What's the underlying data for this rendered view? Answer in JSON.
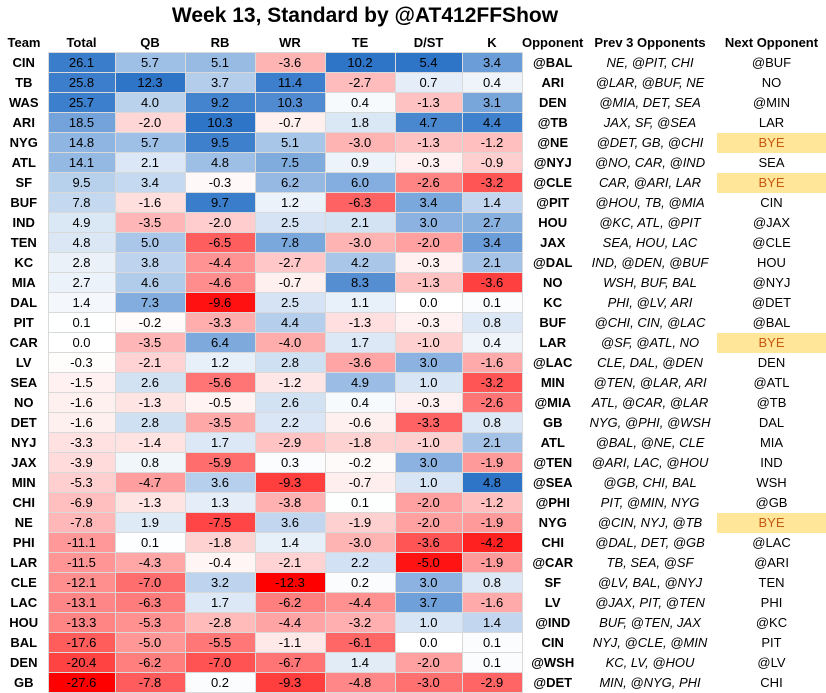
{
  "title": "Week 13, Standard by @AT412FFShow",
  "table": {
    "columns": [
      "Team",
      "Total",
      "QB",
      "RB",
      "WR",
      "TE",
      "D/ST",
      "K",
      "Opponent",
      "Prev 3 Opponents",
      "Next Opponent"
    ],
    "rows": [
      [
        "CIN",
        "26.1",
        "5.7",
        "5.1",
        "-3.6",
        "10.2",
        "5.4",
        "3.4",
        "@BAL",
        "NE, @PIT, CHI",
        "@BUF"
      ],
      [
        "TB",
        "25.8",
        "12.3",
        "3.7",
        "11.4",
        "-2.7",
        "0.7",
        "0.4",
        "ARI",
        "@LAR, @BUF, NE",
        "NO"
      ],
      [
        "WAS",
        "25.7",
        "4.0",
        "9.2",
        "10.3",
        "0.4",
        "-1.3",
        "3.1",
        "DEN",
        "@MIA, DET, SEA",
        "@MIN"
      ],
      [
        "ARI",
        "18.5",
        "-2.0",
        "10.3",
        "-0.7",
        "1.8",
        "4.7",
        "4.4",
        "@TB",
        "JAX, SF, @SEA",
        "LAR"
      ],
      [
        "NYG",
        "14.8",
        "5.7",
        "9.5",
        "5.1",
        "-3.0",
        "-1.3",
        "-1.2",
        "@NE",
        "@DET, GB, @CHI",
        "BYE"
      ],
      [
        "ATL",
        "14.1",
        "2.1",
        "4.8",
        "7.5",
        "0.9",
        "-0.3",
        "-0.9",
        "@NYJ",
        "@NO, CAR, @IND",
        "SEA"
      ],
      [
        "SF",
        "9.5",
        "3.4",
        "-0.3",
        "6.2",
        "6.0",
        "-2.6",
        "-3.2",
        "@CLE",
        "CAR, @ARI, LAR",
        "BYE"
      ],
      [
        "BUF",
        "7.8",
        "-1.6",
        "9.7",
        "1.2",
        "-6.3",
        "3.4",
        "1.4",
        "@PIT",
        "@HOU, TB, @MIA",
        "CIN"
      ],
      [
        "IND",
        "4.9",
        "-3.5",
        "-2.0",
        "2.5",
        "2.1",
        "3.0",
        "2.7",
        "HOU",
        "@KC, ATL, @PIT",
        "@JAX"
      ],
      [
        "TEN",
        "4.8",
        "5.0",
        "-6.5",
        "7.8",
        "-3.0",
        "-2.0",
        "3.4",
        "JAX",
        "SEA, HOU, LAC",
        "@CLE"
      ],
      [
        "KC",
        "2.8",
        "3.8",
        "-4.4",
        "-2.7",
        "4.2",
        "-0.3",
        "2.1",
        "@DAL",
        "IND, @DEN, @BUF",
        "HOU"
      ],
      [
        "MIA",
        "2.7",
        "4.6",
        "-4.6",
        "-0.7",
        "8.3",
        "-1.3",
        "-3.6",
        "NO",
        "WSH, BUF, BAL",
        "@NYJ"
      ],
      [
        "DAL",
        "1.4",
        "7.3",
        "-9.6",
        "2.5",
        "1.1",
        "0.0",
        "0.1",
        "KC",
        "PHI, @LV, ARI",
        "@DET"
      ],
      [
        "PIT",
        "0.1",
        "-0.2",
        "-3.3",
        "4.4",
        "-1.3",
        "-0.3",
        "0.8",
        "BUF",
        "@CHI, CIN, @LAC",
        "@BAL"
      ],
      [
        "CAR",
        "0.0",
        "-3.5",
        "6.4",
        "-4.0",
        "1.7",
        "-1.0",
        "0.4",
        "LAR",
        "@SF, @ATL, NO",
        "BYE"
      ],
      [
        "LV",
        "-0.3",
        "-2.1",
        "1.2",
        "2.8",
        "-3.6",
        "3.0",
        "-1.6",
        "@LAC",
        "CLE, DAL, @DEN",
        "DEN"
      ],
      [
        "SEA",
        "-1.5",
        "2.6",
        "-5.6",
        "-1.2",
        "4.9",
        "1.0",
        "-3.2",
        "MIN",
        "@TEN, @LAR, ARI",
        "@ATL"
      ],
      [
        "NO",
        "-1.6",
        "-1.3",
        "-0.5",
        "2.6",
        "0.4",
        "-0.3",
        "-2.6",
        "@MIA",
        "ATL, @CAR, @LAR",
        "@TB"
      ],
      [
        "DET",
        "-1.6",
        "2.8",
        "-3.5",
        "2.2",
        "-0.6",
        "-3.3",
        "0.8",
        "GB",
        "NYG, @PHI, @WSH",
        "DAL"
      ],
      [
        "NYJ",
        "-3.3",
        "-1.4",
        "1.7",
        "-2.9",
        "-1.8",
        "-1.0",
        "2.1",
        "ATL",
        "@BAL, @NE, CLE",
        "MIA"
      ],
      [
        "JAX",
        "-3.9",
        "0.8",
        "-5.9",
        "0.3",
        "-0.2",
        "3.0",
        "-1.9",
        "@TEN",
        "@ARI, LAC, @HOU",
        "IND"
      ],
      [
        "MIN",
        "-5.3",
        "-4.7",
        "3.6",
        "-9.3",
        "-0.7",
        "1.0",
        "4.8",
        "@SEA",
        "@GB, CHI, BAL",
        "WSH"
      ],
      [
        "CHI",
        "-6.9",
        "-1.3",
        "1.3",
        "-3.8",
        "0.1",
        "-2.0",
        "-1.2",
        "@PHI",
        "PIT, @MIN, NYG",
        "@GB"
      ],
      [
        "NE",
        "-7.8",
        "1.9",
        "-7.5",
        "3.6",
        "-1.9",
        "-2.0",
        "-1.9",
        "NYG",
        "@CIN, NYJ, @TB",
        "BYE"
      ],
      [
        "PHI",
        "-11.1",
        "0.1",
        "-1.8",
        "1.4",
        "-3.0",
        "-3.6",
        "-4.2",
        "CHI",
        "@DAL, DET, @GB",
        "@LAC"
      ],
      [
        "LAR",
        "-11.5",
        "-4.3",
        "-0.4",
        "-2.1",
        "2.2",
        "-5.0",
        "-1.9",
        "@CAR",
        "TB, SEA, @SF",
        "@ARI"
      ],
      [
        "CLE",
        "-12.1",
        "-7.0",
        "3.2",
        "-12.3",
        "0.2",
        "3.0",
        "0.8",
        "SF",
        "@LV, BAL, @NYJ",
        "TEN"
      ],
      [
        "LAC",
        "-13.1",
        "-6.3",
        "1.7",
        "-6.2",
        "-4.4",
        "3.7",
        "-1.6",
        "LV",
        "@JAX, PIT, @TEN",
        "PHI"
      ],
      [
        "HOU",
        "-13.3",
        "-5.3",
        "-2.8",
        "-4.4",
        "-3.2",
        "1.0",
        "1.4",
        "@IND",
        "BUF, @TEN, JAX",
        "@KC"
      ],
      [
        "BAL",
        "-17.6",
        "-5.0",
        "-5.5",
        "-1.1",
        "-6.1",
        "0.0",
        "0.1",
        "CIN",
        "NYJ, @CLE, @MIN",
        "PIT"
      ],
      [
        "DEN",
        "-20.4",
        "-6.2",
        "-7.0",
        "-6.7",
        "1.4",
        "-2.0",
        "0.1",
        "@WSH",
        "KC, LV, @HOU",
        "@LV"
      ],
      [
        "GB",
        "-27.6",
        "-7.8",
        "0.2",
        "-9.3",
        "-4.8",
        "-3.0",
        "-2.9",
        "@DET",
        "MIN, @NYG, PHI",
        "CHI"
      ]
    ]
  },
  "positive_color": "#2e75c8",
  "negative_color": "#ff0000",
  "highlight_color": "#ffe699",
  "highlighted_next_rows": [
    4,
    6,
    14,
    23
  ]
}
